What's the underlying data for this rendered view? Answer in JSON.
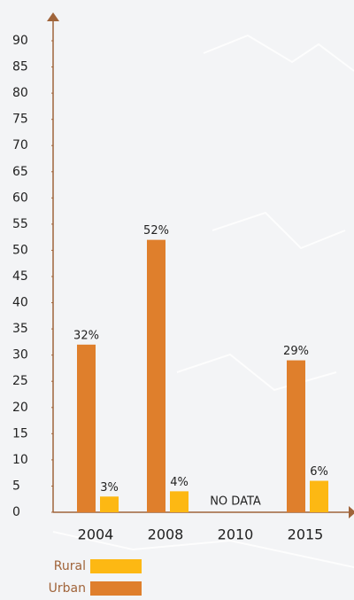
{
  "chart_data": {
    "type": "bar",
    "categories": [
      "2004",
      "2008",
      "2010",
      "2015"
    ],
    "series": [
      {
        "name": "Rural",
        "color": "#fdb813",
        "values": [
          3,
          4,
          null,
          6
        ],
        "value_labels": [
          "3%",
          "4%",
          null,
          "6%"
        ]
      },
      {
        "name": "Urban",
        "color": "#df7f2c",
        "values": [
          32,
          52,
          null,
          29
        ],
        "value_labels": [
          "32%",
          "52%",
          null,
          "29%"
        ]
      }
    ],
    "annotations": [
      {
        "text": "NO DATA",
        "category": "2010"
      }
    ],
    "ylim": [
      0,
      90
    ],
    "yticks": [
      0,
      5,
      10,
      15,
      20,
      25,
      30,
      35,
      40,
      45,
      50,
      55,
      60,
      65,
      70,
      75,
      80,
      85,
      90
    ],
    "grid": false
  }
}
